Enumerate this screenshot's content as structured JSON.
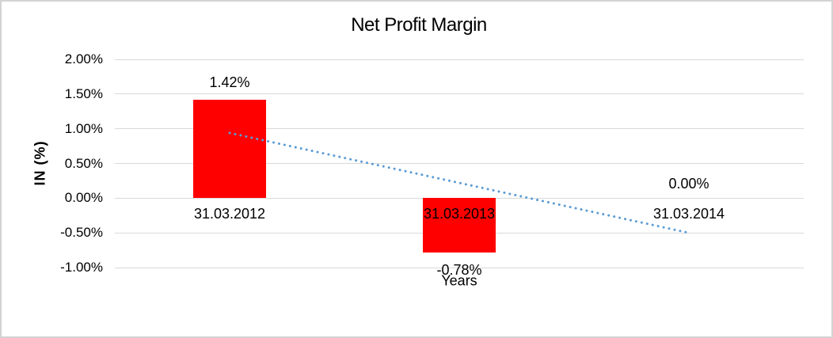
{
  "window": {
    "background": "#ffffff",
    "border_color": "#d3d3d3"
  },
  "chart_data": {
    "type": "bar",
    "title": "Net Profit Margin",
    "xlabel": "Years",
    "ylabel": "IN (%)",
    "units": "percent",
    "categories": [
      "31.03.2012",
      "31.03.2013",
      "31.03.2014"
    ],
    "series": [
      {
        "name": "Net Profit Margin",
        "values": [
          1.42,
          -0.78,
          0.0
        ],
        "value_labels": [
          "1.42%",
          "-0.78%",
          "0.00%"
        ]
      }
    ],
    "yticks": [
      {
        "label": "2.00%",
        "value": 2.0
      },
      {
        "label": "1.50%",
        "value": 1.5
      },
      {
        "label": "1.00%",
        "value": 1.0
      },
      {
        "label": "0.50%",
        "value": 0.5
      },
      {
        "label": "0.00%",
        "value": 0.0
      },
      {
        "label": "-0.50%",
        "value": -0.5
      },
      {
        "label": "-1.00%",
        "value": -1.0
      }
    ],
    "ylim": [
      -1.0,
      2.0
    ],
    "grid": true,
    "legend": false,
    "bar_color": "#ff0000",
    "gridline_color": "#d9d9d9",
    "text_color": "#000000",
    "trendline": {
      "type": "linear",
      "style": "dotted",
      "color": "#5b9bd5",
      "start_value": 0.94,
      "end_value": -0.5
    }
  }
}
